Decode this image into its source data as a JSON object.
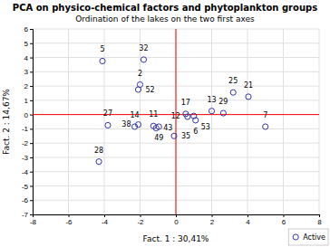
{
  "chart_data": {
    "type": "scatter",
    "title": "PCA on physico-chemical factors and phytoplankton groups",
    "subtitle": "Ordination of the lakes on the two first axes",
    "x_label": "Fact. 1 : 30,41%",
    "y_label": "Fact. 2 : 14,67%",
    "xlim": [
      -8,
      8
    ],
    "ylim": [
      -7,
      6
    ],
    "xticks": [
      -8,
      -6,
      -4,
      -2,
      0,
      2,
      4,
      6,
      8
    ],
    "yticks": [
      -7,
      -6,
      -5,
      -4,
      -3,
      -2,
      -1,
      0,
      1,
      2,
      3,
      4,
      5,
      6
    ],
    "grid": true,
    "legend": "lower right",
    "series": [
      {
        "name": "Active",
        "color": "#3333aa",
        "marker": "o",
        "x": [
          -4.1,
          -1.8,
          -2.0,
          -2.1,
          -3.8,
          -4.3,
          -2.3,
          -2.1,
          -1.25,
          -1.1,
          -0.95,
          -0.1,
          0.55,
          0.65,
          1.0,
          1.1,
          2.0,
          2.65,
          3.2,
          4.05,
          5.0
        ],
        "values": [
          3.75,
          3.85,
          2.1,
          1.75,
          -0.75,
          -3.3,
          -0.85,
          -0.7,
          -0.8,
          -0.95,
          -0.85,
          -1.5,
          0.05,
          -0.15,
          -0.1,
          -0.4,
          0.25,
          0.1,
          1.55,
          1.25,
          -0.85
        ],
        "labels": [
          "5",
          "32",
          "2",
          "52",
          "27",
          "28",
          "14",
          "38",
          "11",
          "43",
          "49",
          "35",
          "17",
          "12",
          "53",
          "6",
          "13",
          "29",
          "25",
          "21",
          "7"
        ]
      }
    ],
    "reference_lines": {
      "x": [
        0
      ],
      "y": [
        0
      ],
      "color": "red"
    }
  }
}
